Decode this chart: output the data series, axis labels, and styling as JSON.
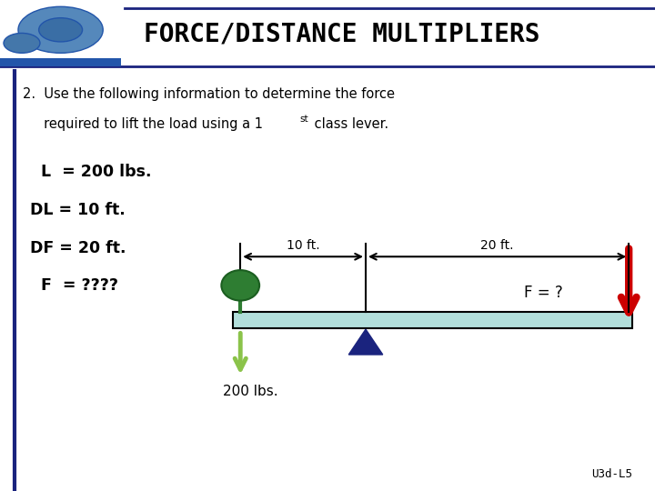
{
  "title": "FORCE/DISTANCE MULTIPLIERS",
  "title_fontsize": 20,
  "title_font": "monospace",
  "title_color": "#000000",
  "blue_line_color": "#1a237e",
  "problem_text_line1": "2.  Use the following information to determine the force",
  "problem_text_line2": "     required to lift the load using a 1",
  "problem_text_sup": "st",
  "problem_text_line2b": " class lever.",
  "var_L": "   L  = 200 lbs.",
  "var_DL": "  DL = 10 ft.",
  "var_DF": "  DF = 20 ft.",
  "var_F": "    F  = ????",
  "label_10ft": "10 ft.",
  "label_20ft": "20 ft.",
  "label_200lbs": "200 lbs.",
  "label_F": "F = ?",
  "label_code": "U3d-L5",
  "lever_color": "#b2dfdb",
  "lever_edge": "#000000",
  "fulcrum_color": "#1a237e",
  "load_circle_color": "#2e7d32",
  "load_arrow_color": "#8bc34a",
  "force_arrow_color": "#cc0000",
  "body_bg": "#f5f5f5",
  "header_bg": "#ffffff"
}
